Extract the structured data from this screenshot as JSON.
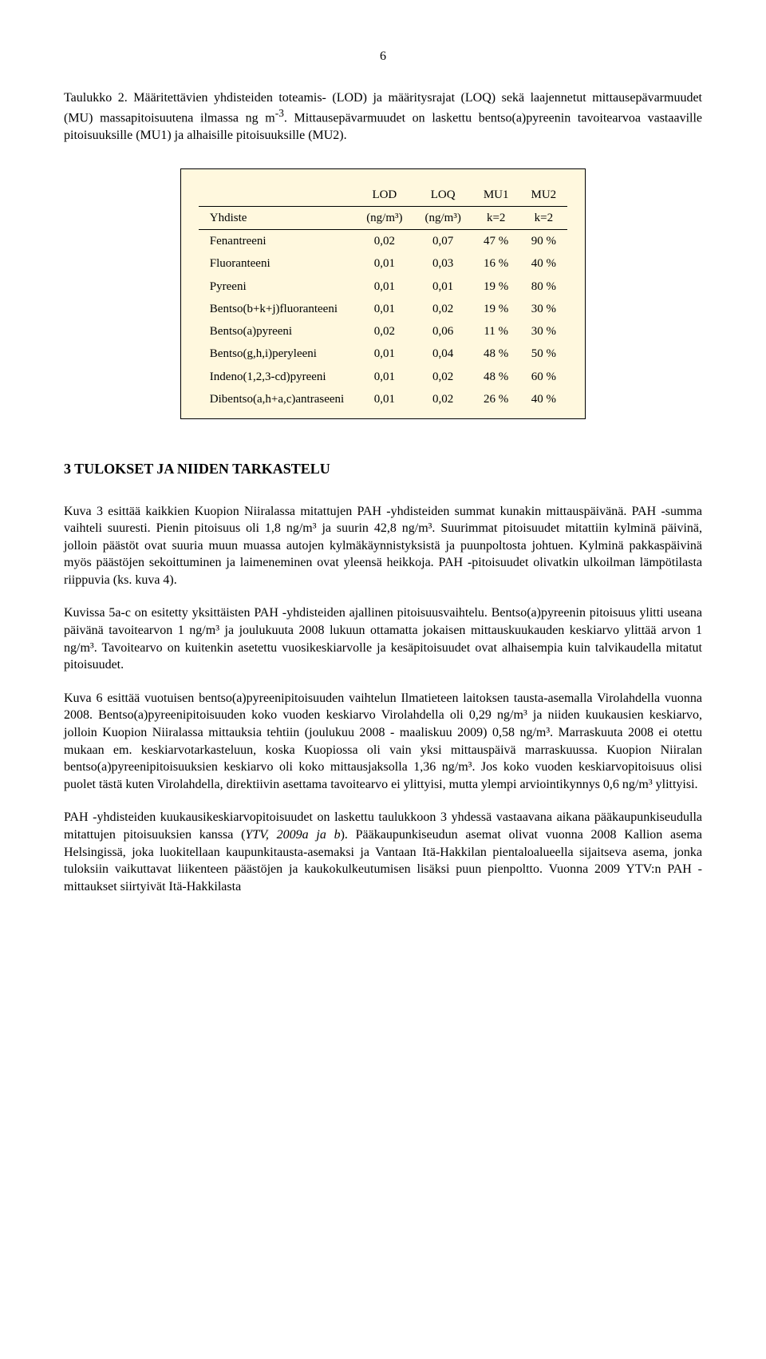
{
  "page_number": "6",
  "caption": {
    "prefix": "Taulukko 2.",
    "text": " Määritettävien yhdisteiden toteamis- (LOD) ja määritysrajat (LOQ) sekä laajennetut mittausepävarmuudet (MU) massapitoisuutena ilmassa ng m",
    "sup": "-3",
    "text2": ". Mittausepävarmuudet on laskettu bentso(a)pyreenin tavoitearvoa vastaaville pitoisuuksille (MU1) ja alhaisille pitoisuuksille (MU2)."
  },
  "table": {
    "header_row1": [
      "",
      "LOD",
      "LOQ",
      "MU1",
      "MU2"
    ],
    "header_row2": [
      "Yhdiste",
      "(ng/m³)",
      "(ng/m³)",
      "k=2",
      "k=2"
    ],
    "rows": [
      [
        "Fenantreeni",
        "0,02",
        "0,07",
        "47 %",
        "90 %"
      ],
      [
        "Fluoranteeni",
        "0,01",
        "0,03",
        "16 %",
        "40 %"
      ],
      [
        "Pyreeni",
        "0,01",
        "0,01",
        "19 %",
        "80 %"
      ],
      [
        "Bentso(b+k+j)fluoranteeni",
        "0,01",
        "0,02",
        "19 %",
        "30 %"
      ],
      [
        "Bentso(a)pyreeni",
        "0,02",
        "0,06",
        "11 %",
        "30 %"
      ],
      [
        "Bentso(g,h,i)peryleeni",
        "0,01",
        "0,04",
        "48 %",
        "50 %"
      ],
      [
        "Indeno(1,2,3-cd)pyreeni",
        "0,01",
        "0,02",
        "48 %",
        "60 %"
      ],
      [
        "Dibentso(a,h+a,c)antraseeni",
        "0,01",
        "0,02",
        "26 %",
        "40 %"
      ]
    ],
    "bg_color": "#fff8de",
    "border_color": "#000000"
  },
  "section_heading": "3  TULOKSET JA NIIDEN TARKASTELU",
  "para1": "Kuva 3 esittää kaikkien Kuopion Niiralassa mitattujen PAH -yhdisteiden summat kunakin mittauspäivänä. PAH -summa vaihteli suuresti. Pienin pitoisuus oli 1,8 ng/m³ ja suurin 42,8 ng/m³. Suurimmat pitoisuudet mitattiin kylminä päivinä, jolloin päästöt ovat suuria muun muassa autojen kylmäkäynnistyksistä ja puunpoltosta johtuen. Kylminä pakkaspäivinä myös päästöjen sekoittuminen ja laimeneminen ovat yleensä heikkoja. PAH -pitoisuudet olivatkin ulkoilman lämpötilasta riippuvia (ks. kuva 4).",
  "para2": "Kuvissa 5a-c on esitetty yksittäisten PAH -yhdisteiden ajallinen pitoisuusvaihtelu. Bentso(a)pyreenin pitoisuus ylitti useana päivänä tavoitearvon 1 ng/m³ ja joulukuuta 2008 lukuun ottamatta jokaisen mittauskuukauden keskiarvo ylittää arvon 1 ng/m³. Tavoitearvo on kuitenkin asetettu vuosikeskiarvolle ja kesäpitoisuudet ovat alhaisempia kuin talvikaudella mitatut pitoisuudet.",
  "para3": "Kuva 6 esittää vuotuisen bentso(a)pyreenipitoisuuden vaihtelun Ilmatieteen laitoksen tausta-asemalla Virolahdella vuonna 2008. Bentso(a)pyreenipitoisuuden koko vuoden keskiarvo Virolahdella oli 0,29 ng/m³ ja niiden kuukausien keskiarvo, jolloin Kuopion Niiralassa mittauksia tehtiin (joulukuu 2008 - maaliskuu 2009) 0,58 ng/m³. Marraskuuta 2008 ei otettu mukaan em. keskiarvotarkasteluun, koska Kuopiossa oli vain yksi mittauspäivä marraskuussa. Kuopion Niiralan bentso(a)pyreenipitoisuuksien keskiarvo oli koko mittausjaksolla 1,36 ng/m³. Jos koko vuoden keskiarvopitoisuus olisi puolet tästä kuten Virolahdella, direktiivin asettama tavoitearvo ei ylittyisi, mutta ylempi arviointikynnys 0,6 ng/m³ ylittyisi.",
  "para4_a": "PAH -yhdisteiden kuukausikeskiarvopitoisuudet on laskettu taulukkoon 3 yhdessä vastaavana aikana pääkaupunkiseudulla mitattujen pitoisuuksien kanssa (",
  "para4_ref": "YTV, 2009a ja b",
  "para4_b": "). Pääkaupunkiseudun asemat olivat vuonna 2008 Kallion asema Helsingissä, joka luokitellaan kaupunkitausta-asemaksi ja Vantaan Itä-Hakkilan pientaloalueella sijaitseva asema, jonka tuloksiin vaikuttavat liikenteen päästöjen ja kaukokulkeutumisen lisäksi puun pienpoltto. Vuonna 2009 YTV:n PAH -mittaukset siirtyivät Itä-Hakkilasta"
}
